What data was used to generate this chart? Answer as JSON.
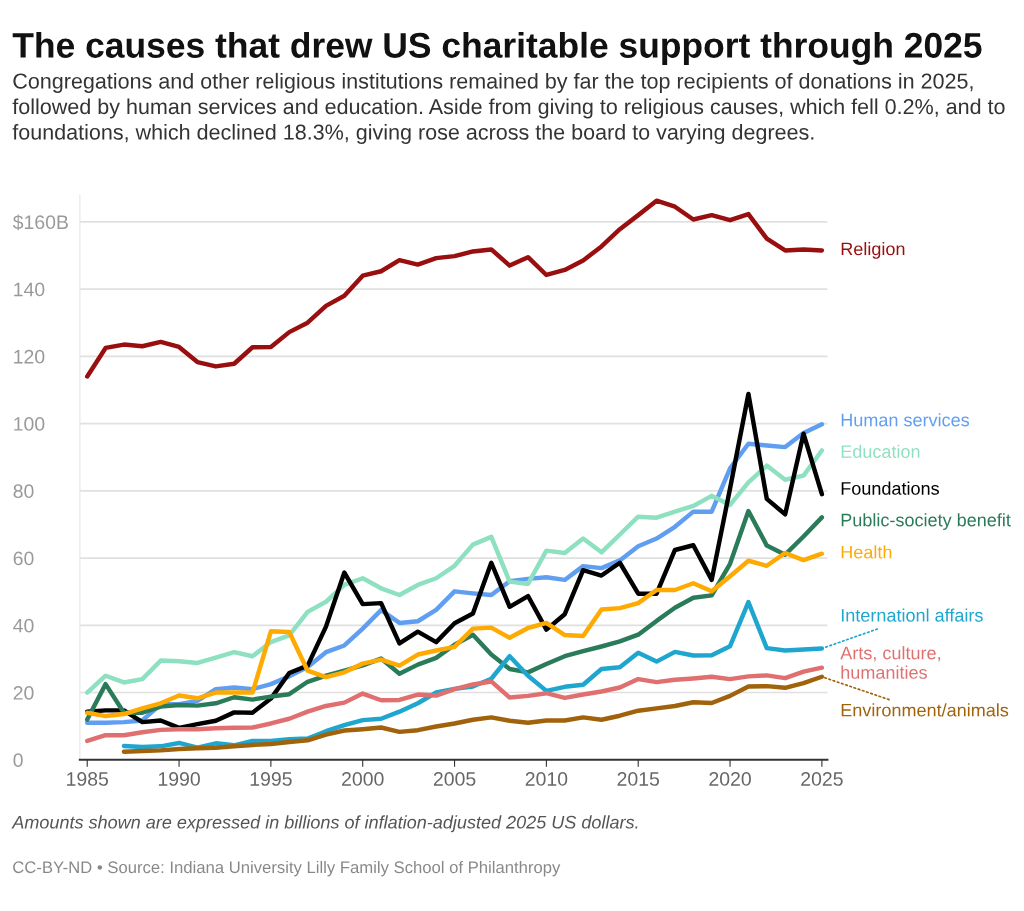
{
  "chart_data": {
    "type": "line",
    "title": "The causes that drew US charitable support through 2025",
    "subtitle": "Congregations and other religious institutions remained by far the top recipients of donations in 2025, followed by human services and education. Aside from giving to religious causes, which fell 0.2%, and to foundations, which declined 18.3%, giving rose across the board to varying degrees.",
    "x": [
      1985,
      1986,
      1987,
      1988,
      1989,
      1990,
      1991,
      1992,
      1993,
      1994,
      1995,
      1996,
      1997,
      1998,
      1999,
      2000,
      2001,
      2002,
      2003,
      2004,
      2005,
      2006,
      2007,
      2008,
      2009,
      2010,
      2011,
      2012,
      2013,
      2014,
      2015,
      2016,
      2017,
      2018,
      2019,
      2020,
      2021,
      2022,
      2023,
      2024,
      2025
    ],
    "series": [
      {
        "name": "Religion",
        "color": "#990f0f",
        "values": [
          114,
          122.5,
          123.5,
          123,
          124.3,
          122.8,
          118.3,
          117,
          117.8,
          122.7,
          122.8,
          127.2,
          130,
          135,
          138,
          144,
          145.3,
          148.6,
          147.3,
          149.2,
          149.8,
          151.2,
          151.8,
          147,
          149.5,
          144.2,
          145.7,
          148.5,
          152.7,
          157.8,
          162,
          166.3,
          164.5,
          160.7,
          162,
          160.5,
          162.3,
          155,
          151.5,
          151.8,
          151.5
        ]
      },
      {
        "name": "Human services",
        "color": "#5f9ef0",
        "values": [
          11,
          11,
          11.2,
          11.7,
          16.5,
          16.5,
          17.5,
          21,
          21.5,
          21,
          22.5,
          24.8,
          27.6,
          32,
          34,
          39,
          44.5,
          40.7,
          41.2,
          44.6,
          50.1,
          49.5,
          49,
          53.1,
          53.8,
          54.3,
          53.5,
          57.6,
          57,
          59.3,
          63.5,
          65.8,
          69.3,
          73.8,
          73.8,
          86.7,
          94,
          93.5,
          93,
          97.2,
          99.8
        ]
      },
      {
        "name": "Education",
        "color": "#8de0c0",
        "values": [
          20,
          25,
          23,
          24,
          29.5,
          29.3,
          28.8,
          30.4,
          32,
          30.8,
          35,
          37,
          44,
          47,
          52,
          54,
          51,
          49,
          52,
          54,
          57.7,
          64,
          66.3,
          53,
          52.3,
          62.2,
          61.5,
          65.8,
          61.7,
          67,
          72.3,
          72,
          73.8,
          75.5,
          78.5,
          75.8,
          82.5,
          87.5,
          83.3,
          84.5,
          92
        ]
      },
      {
        "name": "Foundations",
        "color": "#000000",
        "values": [
          14.3,
          14.7,
          14.7,
          11.2,
          11.7,
          9.5,
          10.6,
          11.6,
          14.1,
          14,
          18.2,
          25.8,
          28,
          39.6,
          55.7,
          46.3,
          46.6,
          34.6,
          38.1,
          35,
          40.6,
          43.5,
          58.6,
          45.5,
          48.7,
          38.7,
          43.3,
          56.4,
          54.8,
          58.6,
          49.4,
          49.4,
          62.4,
          63.8,
          53.5,
          80.7,
          108.8,
          77.6,
          73,
          97,
          79
        ]
      },
      {
        "name": "Public-society benefit",
        "color": "#2a7b5a",
        "values": [
          12,
          22.5,
          14,
          14,
          15.8,
          16.3,
          16.1,
          16.8,
          18.6,
          17.9,
          18.8,
          19.5,
          23.2,
          25,
          26.5,
          28.1,
          30.1,
          25.6,
          28.3,
          30.3,
          34.2,
          37.2,
          31.3,
          27,
          26,
          28.5,
          30.8,
          32.3,
          33.7,
          35.2,
          37.2,
          41.3,
          45.2,
          48.2,
          48.9,
          58.3,
          74,
          63.7,
          61,
          66.4,
          72.1
        ]
      },
      {
        "name": "Health",
        "color": "#ffaa00",
        "values": [
          14,
          13,
          13.6,
          15.3,
          16.8,
          19.1,
          18.3,
          20,
          20,
          20,
          38.2,
          38,
          26.5,
          24.6,
          26,
          28.6,
          29.8,
          28,
          31.3,
          32.5,
          33.6,
          39,
          39.3,
          36.3,
          39.2,
          40.7,
          37.1,
          36.8,
          44.7,
          45.1,
          46.6,
          50.5,
          50.5,
          52.5,
          50.1,
          54.6,
          59.2,
          57.7,
          61.5,
          59.4,
          61.3
        ]
      },
      {
        "name": "Internationl affairs",
        "color": "#1ea6cf",
        "values": [
          null,
          null,
          4.1,
          3.8,
          4,
          5,
          3.6,
          4.9,
          4.3,
          5.6,
          5.6,
          6.1,
          6.3,
          8.5,
          10.3,
          11.8,
          12.2,
          14.3,
          16.8,
          20,
          21.1,
          21.8,
          24.1,
          30.8,
          25,
          20.5,
          21.7,
          22.3,
          27,
          27.5,
          31.8,
          29.2,
          32.1,
          31,
          31.1,
          33.8,
          46.9,
          33.2,
          32.5,
          32.8,
          33.1
        ]
      },
      {
        "name": "Arts, culture,\nhumanities",
        "color": "#e07070",
        "values": [
          5.6,
          7.3,
          7.3,
          8.2,
          8.9,
          9.1,
          9.1,
          9.4,
          9.5,
          9.6,
          10.8,
          12.2,
          14.3,
          16,
          17,
          19.7,
          17.7,
          17.8,
          19.4,
          19.1,
          21,
          22.4,
          23.3,
          18.5,
          19,
          19.8,
          18.4,
          19.4,
          20.3,
          21.5,
          24,
          23.1,
          23.8,
          24.2,
          24.7,
          24,
          24.8,
          25.1,
          24.3,
          26.2,
          27.4
        ]
      },
      {
        "name": "Environment/animals",
        "color": "#a0620a",
        "values": [
          null,
          null,
          2.4,
          2.6,
          2.8,
          3.2,
          3.4,
          3.6,
          4,
          4.4,
          4.7,
          5.3,
          5.8,
          7.5,
          8.7,
          9.1,
          9.6,
          8.3,
          8.8,
          9.9,
          10.8,
          11.9,
          12.6,
          11.6,
          11,
          11.7,
          11.7,
          12.6,
          11.9,
          13.1,
          14.6,
          15.3,
          16,
          17.1,
          16.9,
          19,
          21.8,
          21.9,
          21.4,
          22.8,
          24.7
        ]
      }
    ],
    "xlim": [
      1984.6,
      2025.3
    ],
    "xticks": [
      1985,
      1990,
      1995,
      2000,
      2005,
      2010,
      2015,
      2020,
      2025
    ],
    "ylim": [
      0,
      168
    ],
    "yticks": [
      0,
      20,
      40,
      60,
      80,
      100,
      120,
      140,
      {
        "value": 160,
        "label": "$160B"
      }
    ],
    "grid": "y",
    "legend": false,
    "line_style": "solid",
    "marker": "none",
    "annotations": [
      "Amounts shown are expressed in billions of inflation-adjusted 2025 US dollars.",
      "CC-BY-ND • Source: Indiana University Lilly Family School of Philanthropy"
    ]
  }
}
